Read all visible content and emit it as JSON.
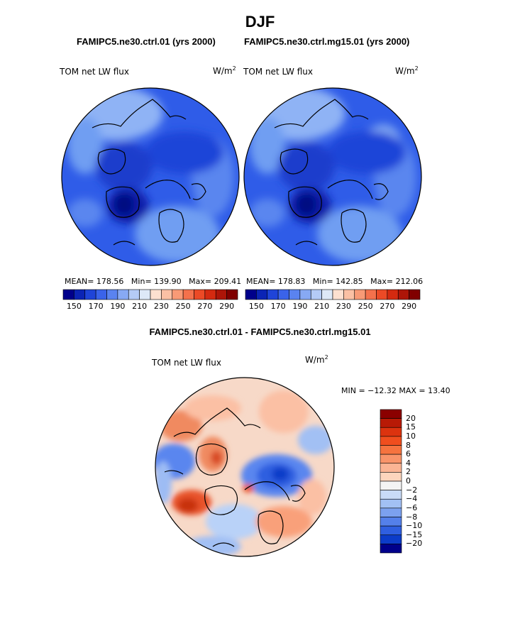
{
  "chart_data": [
    {
      "type": "heatmap",
      "projection": "north-polar-stereographic",
      "season_title": "DJF",
      "case_title": "FAMIPC5.ne30.ctrl.01 (yrs 2000)",
      "variable": "TOM net LW flux",
      "units": "W/m",
      "units_exp": "2",
      "stats": {
        "mean_label": "MEAN=",
        "mean": "178.56",
        "min_label": "Min=",
        "min": "139.90",
        "max_label": "Max=",
        "max": "209.41"
      },
      "colorbar_ticks": [
        "150",
        "170",
        "190",
        "210",
        "230",
        "250",
        "270",
        "290"
      ],
      "colorbar_colors": [
        "#00008b",
        "#0b24b5",
        "#1f44d8",
        "#3a63ea",
        "#5a83f0",
        "#87a9f4",
        "#b4cbf6",
        "#dde8f7",
        "#fde0d0",
        "#fbc0a4",
        "#f89a76",
        "#f4714c",
        "#ec4a26",
        "#d42a10",
        "#ad1508",
        "#800000"
      ]
    },
    {
      "type": "heatmap",
      "projection": "north-polar-stereographic",
      "case_title": "FAMIPC5.ne30.ctrl.mg15.01 (yrs 2000)",
      "variable": "TOM net LW flux",
      "units": "W/m",
      "units_exp": "2",
      "stats": {
        "mean_label": "MEAN=",
        "mean": "178.83",
        "min_label": "Min=",
        "min": "142.85",
        "max_label": "Max=",
        "max": "212.06"
      },
      "colorbar_ticks": [
        "150",
        "170",
        "190",
        "210",
        "230",
        "250",
        "270",
        "290"
      ]
    },
    {
      "type": "heatmap",
      "projection": "north-polar-stereographic",
      "diff_title": "FAMIPC5.ne30.ctrl.01 - FAMIPC5.ne30.ctrl.mg15.01",
      "variable": "TOM net LW flux",
      "units": "W/m",
      "units_exp": "2",
      "minmax_text": "MIN = −12.32 MAX =  13.40",
      "colorbar_ticks": [
        "20",
        "15",
        "10",
        "8",
        "6",
        "4",
        "2",
        "0",
        "−2",
        "−4",
        "−6",
        "−8",
        "−10",
        "−15",
        "−20"
      ],
      "colorbar_colors": [
        "#8b0000",
        "#b81a06",
        "#dc330f",
        "#f04e1e",
        "#f6733f",
        "#f9946a",
        "#fbb494",
        "#fdd5bd",
        "#f4f4f4",
        "#c9dbf7",
        "#a2c0f4",
        "#7ca1ef",
        "#5480ea",
        "#2f5fe0",
        "#0c3cc9",
        "#00008b"
      ]
    }
  ],
  "colors": {
    "ocean_blue": "#1f4fe6",
    "deep_blue": "#0a1fa8",
    "light_blue": "#6f9ef2",
    "pale_blue": "#b9d2f8",
    "diff_red": "#e8522a",
    "diff_pale": "#fbd4bf"
  }
}
